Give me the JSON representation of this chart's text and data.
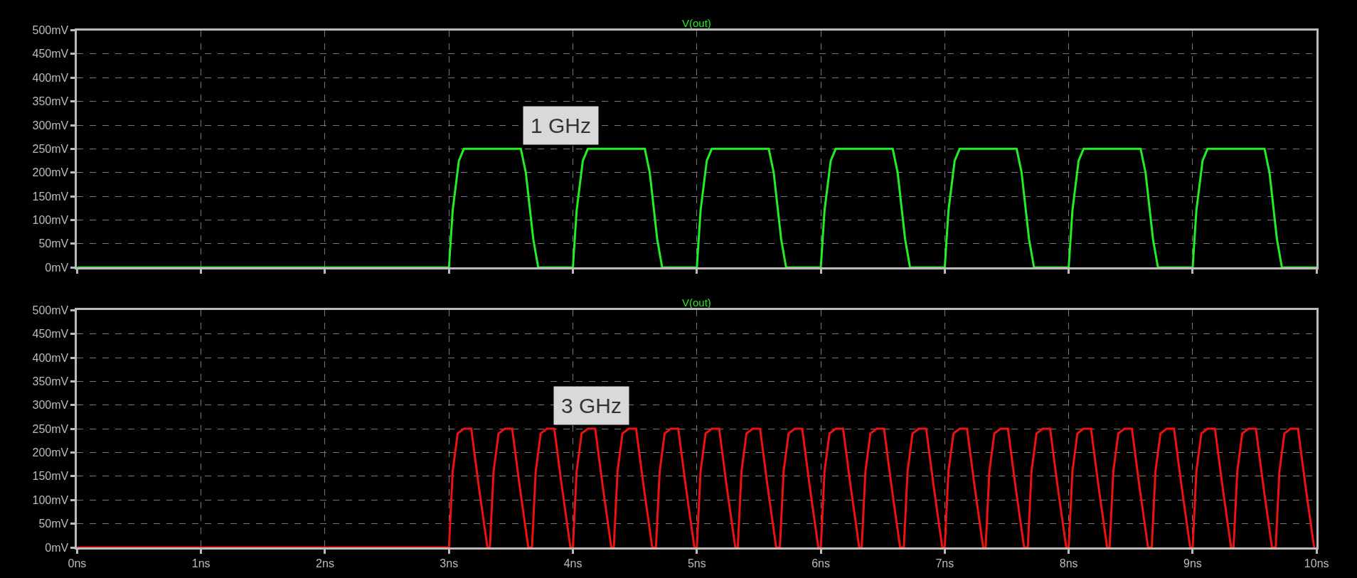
{
  "chart_data": [
    {
      "type": "line",
      "title": "V(out)",
      "annotations": [
        "1 GHz"
      ],
      "grid": true,
      "marker": "none",
      "line_style": "solid",
      "tick_labels": "y",
      "xlim": [
        0,
        10
      ],
      "xticks": [
        {
          "value": 0,
          "label": null
        },
        {
          "value": 1,
          "label": null
        },
        {
          "value": 2,
          "label": null
        },
        {
          "value": 3,
          "label": null
        },
        {
          "value": 4,
          "label": null
        },
        {
          "value": 5,
          "label": null
        },
        {
          "value": 6,
          "label": null
        },
        {
          "value": 7,
          "label": null
        },
        {
          "value": 8,
          "label": null
        },
        {
          "value": 9,
          "label": null
        },
        {
          "value": 10,
          "label": null
        }
      ],
      "ylim": [
        0,
        500
      ],
      "yticks": [
        {
          "value": 0,
          "label": "0mV"
        },
        {
          "value": 50,
          "label": "50mV"
        },
        {
          "value": 100,
          "label": "100mV"
        },
        {
          "value": 150,
          "label": "150mV"
        },
        {
          "value": 200,
          "label": "200mV"
        },
        {
          "value": 250,
          "label": "250mV"
        },
        {
          "value": 300,
          "label": "300mV"
        },
        {
          "value": 350,
          "label": "350mV"
        },
        {
          "value": 400,
          "label": "400mV"
        },
        {
          "value": 450,
          "label": "450mV"
        },
        {
          "value": 500,
          "label": "500mV"
        }
      ],
      "series": [
        {
          "color": "#22ee22",
          "x": [
            0,
            3,
            3.03,
            3.08,
            3.12,
            3.58,
            3.62,
            3.68,
            3.72,
            4,
            4.03,
            4.08,
            4.12,
            4.58,
            4.62,
            4.68,
            4.72,
            5,
            5.03,
            5.08,
            5.12,
            5.58,
            5.62,
            5.68,
            5.72,
            6,
            6.03,
            6.08,
            6.12,
            6.58,
            6.62,
            6.68,
            6.72,
            7,
            7.03,
            7.08,
            7.12,
            7.58,
            7.62,
            7.68,
            7.72,
            8,
            8.03,
            8.08,
            8.12,
            8.58,
            8.62,
            8.68,
            8.72,
            9,
            9.03,
            9.08,
            9.12,
            9.58,
            9.62,
            9.68,
            9.72,
            10
          ],
          "values": [
            0,
            0,
            120,
            225,
            250,
            250,
            200,
            60,
            0,
            0,
            120,
            225,
            250,
            250,
            200,
            60,
            0,
            0,
            120,
            225,
            250,
            250,
            200,
            60,
            0,
            0,
            120,
            225,
            250,
            250,
            200,
            60,
            0,
            0,
            120,
            225,
            250,
            250,
            200,
            60,
            0,
            0,
            120,
            225,
            250,
            250,
            200,
            60,
            0,
            0,
            120,
            225,
            250,
            250,
            200,
            60,
            0,
            0
          ]
        }
      ]
    },
    {
      "type": "line",
      "title": "V(out)",
      "annotations": [
        "3 GHz"
      ],
      "grid": true,
      "marker": "none",
      "line_style": "solid",
      "xlim": [
        0,
        10
      ],
      "xticks": [
        {
          "value": 0,
          "label": "0ns"
        },
        {
          "value": 1,
          "label": "1ns"
        },
        {
          "value": 2,
          "label": "2ns"
        },
        {
          "value": 3,
          "label": "3ns"
        },
        {
          "value": 4,
          "label": "4ns"
        },
        {
          "value": 5,
          "label": "5ns"
        },
        {
          "value": 6,
          "label": "6ns"
        },
        {
          "value": 7,
          "label": "7ns"
        },
        {
          "value": 8,
          "label": "8ns"
        },
        {
          "value": 9,
          "label": "9ns"
        },
        {
          "value": 10,
          "label": "10ns"
        }
      ],
      "ylim": [
        0,
        500
      ],
      "yticks": [
        {
          "value": 0,
          "label": "0mV"
        },
        {
          "value": 50,
          "label": "50mV"
        },
        {
          "value": 100,
          "label": "100mV"
        },
        {
          "value": 150,
          "label": "150mV"
        },
        {
          "value": 200,
          "label": "200mV"
        },
        {
          "value": 250,
          "label": "250mV"
        },
        {
          "value": 300,
          "label": "300mV"
        },
        {
          "value": 350,
          "label": "350mV"
        },
        {
          "value": 400,
          "label": "400mV"
        },
        {
          "value": 450,
          "label": "450mV"
        },
        {
          "value": 500,
          "label": "500mV"
        }
      ],
      "series": [
        {
          "color": "#ee1111",
          "x": [
            0,
            3,
            3.03,
            3.07,
            3.12,
            3.18,
            3.24,
            3.31,
            3.33,
            3.36,
            3.4,
            3.45,
            3.51,
            3.57,
            3.64,
            3.67,
            3.7,
            3.74,
            3.79,
            3.85,
            3.91,
            3.98,
            4,
            4.03,
            4.07,
            4.12,
            4.18,
            4.24,
            4.31,
            4.33,
            4.36,
            4.4,
            4.45,
            4.51,
            4.57,
            4.64,
            4.67,
            4.7,
            4.74,
            4.79,
            4.85,
            4.91,
            4.98,
            5,
            5.03,
            5.07,
            5.12,
            5.18,
            5.24,
            5.31,
            5.33,
            5.36,
            5.4,
            5.45,
            5.51,
            5.57,
            5.64,
            5.67,
            5.7,
            5.74,
            5.79,
            5.85,
            5.91,
            5.98,
            6,
            6.03,
            6.07,
            6.12,
            6.18,
            6.24,
            6.31,
            6.33,
            6.36,
            6.4,
            6.45,
            6.51,
            6.57,
            6.64,
            6.67,
            6.7,
            6.74,
            6.79,
            6.85,
            6.91,
            6.98,
            7,
            7.03,
            7.07,
            7.12,
            7.18,
            7.24,
            7.31,
            7.33,
            7.36,
            7.4,
            7.45,
            7.51,
            7.57,
            7.64,
            7.67,
            7.7,
            7.74,
            7.79,
            7.85,
            7.91,
            7.98,
            8,
            8.03,
            8.07,
            8.12,
            8.18,
            8.24,
            8.31,
            8.33,
            8.36,
            8.4,
            8.45,
            8.51,
            8.57,
            8.64,
            8.67,
            8.7,
            8.74,
            8.79,
            8.85,
            8.91,
            8.98,
            9,
            9.03,
            9.07,
            9.12,
            9.18,
            9.24,
            9.31,
            9.33,
            9.36,
            9.4,
            9.45,
            9.51,
            9.57,
            9.64,
            9.67,
            9.7,
            9.74,
            9.79,
            9.85,
            9.91,
            9.98
          ],
          "values": [
            0,
            0,
            160,
            240,
            250,
            250,
            130,
            0,
            0,
            160,
            240,
            250,
            250,
            130,
            0,
            0,
            160,
            240,
            250,
            250,
            130,
            0,
            0,
            160,
            240,
            250,
            250,
            130,
            0,
            0,
            160,
            240,
            250,
            250,
            130,
            0,
            0,
            160,
            240,
            250,
            250,
            130,
            0,
            0,
            160,
            240,
            250,
            250,
            130,
            0,
            0,
            160,
            240,
            250,
            250,
            130,
            0,
            0,
            160,
            240,
            250,
            250,
            130,
            0,
            0,
            160,
            240,
            250,
            250,
            130,
            0,
            0,
            160,
            240,
            250,
            250,
            130,
            0,
            0,
            160,
            240,
            250,
            250,
            130,
            0,
            0,
            160,
            240,
            250,
            250,
            130,
            0,
            0,
            160,
            240,
            250,
            250,
            130,
            0,
            0,
            160,
            240,
            250,
            250,
            130,
            0,
            0,
            160,
            240,
            250,
            250,
            130,
            0,
            0,
            160,
            240,
            250,
            250,
            130,
            0,
            0,
            160,
            240,
            250,
            250,
            130,
            0,
            0,
            160,
            240,
            250,
            250,
            130,
            0,
            0,
            160,
            240,
            250,
            250,
            130,
            0,
            0,
            160,
            240,
            250,
            250,
            130,
            0
          ]
        }
      ]
    }
  ]
}
